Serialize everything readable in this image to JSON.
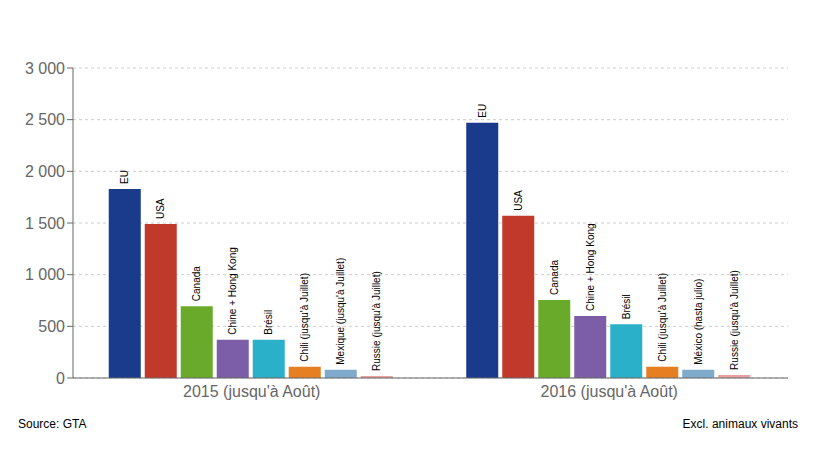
{
  "chart_data": {
    "type": "bar",
    "categories": [
      "2015 (jusqu'à Août)",
      "2016 (jusqu'à Août)"
    ],
    "series": [
      {
        "color": "#1a3a8c",
        "values": [
          1830,
          2470
        ],
        "labels": [
          "EU",
          "EU"
        ]
      },
      {
        "color": "#c0392b",
        "values": [
          1490,
          1570
        ],
        "labels": [
          "USA",
          "USA"
        ]
      },
      {
        "color": "#6aaa2a",
        "values": [
          695,
          755
        ],
        "labels": [
          "Canada",
          "Canada"
        ]
      },
      {
        "color": "#7b5ea7",
        "values": [
          370,
          600
        ],
        "labels": [
          "Chine + Hong Kong",
          "Chine + Hong Kong"
        ]
      },
      {
        "color": "#2ab0c8",
        "values": [
          370,
          520
        ],
        "labels": [
          "Brésil",
          "Brésil"
        ]
      },
      {
        "color": "#e67e22",
        "values": [
          110,
          110
        ],
        "labels": [
          "Chili (jusqu'à Juillet)",
          "Chili (jusqu'à Juillet)"
        ]
      },
      {
        "color": "#7faacc",
        "values": [
          80,
          80
        ],
        "labels": [
          "Mexique (jusqu'à Juillet)",
          "México (hasta julio)"
        ]
      },
      {
        "color": "#e8a0a0",
        "values": [
          20,
          30
        ],
        "labels": [
          "Russie (jusqu'à Juillet)",
          "Russie (jusqu'à Juillet)"
        ]
      }
    ],
    "ylim": [
      0,
      3000
    ],
    "yticks": [
      0,
      500,
      {
        "value": 1000,
        "label": "1 000"
      },
      {
        "value": 1500,
        "label": "1 500"
      },
      {
        "value": 2000,
        "label": "2 000"
      },
      {
        "value": 2500,
        "label": "2 500"
      },
      {
        "value": 3000,
        "label": "3 000"
      }
    ],
    "grid": true,
    "annotations": [
      "Source: GTA",
      "Excl. animaux vivants"
    ]
  }
}
